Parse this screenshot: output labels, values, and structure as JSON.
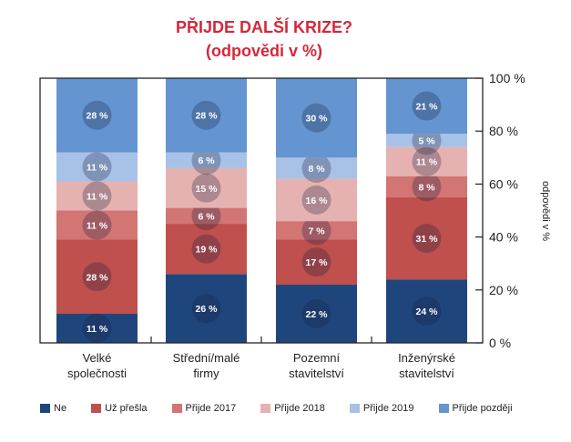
{
  "title_line1": "PŘIJDE DALŠÍ KRIZE?",
  "title_line2": "(odpovědi v %)",
  "chart_data": {
    "type": "bar",
    "stacked": true,
    "title": "PŘIJDE DALŠÍ KRIZE? (odpovědi v %)",
    "categories": [
      [
        "Velké",
        "společnosti"
      ],
      [
        "Střední/malé",
        "firmy"
      ],
      [
        "Pozemní",
        "stavitelství"
      ],
      [
        "Inženýrské",
        "stavitelství"
      ]
    ],
    "series": [
      {
        "name": "Ne",
        "color": "#1f467c",
        "values": [
          11,
          26,
          22,
          24
        ]
      },
      {
        "name": "Už přešla",
        "color": "#c0504d",
        "values": [
          28,
          19,
          17,
          31
        ]
      },
      {
        "name": "Přijde 2017",
        "color": "#d27573",
        "values": [
          11,
          6,
          7,
          8
        ]
      },
      {
        "name": "Přijde 2018",
        "color": "#e6b2b1",
        "values": [
          11,
          15,
          16,
          11
        ]
      },
      {
        "name": "Přijde 2019",
        "color": "#a8c1e6",
        "values": [
          11,
          6,
          8,
          5
        ]
      },
      {
        "name": "Přijde později",
        "color": "#6495d0",
        "values": [
          28,
          28,
          30,
          21
        ]
      }
    ],
    "ylabel": "odpovědi v %",
    "ylim": [
      0,
      100
    ],
    "yticks": [
      "0 %",
      "20 %",
      "40 %",
      "60 %",
      "80 %",
      "100 %"
    ],
    "value_suffix": " %",
    "legend": "bottom",
    "grid": false
  }
}
